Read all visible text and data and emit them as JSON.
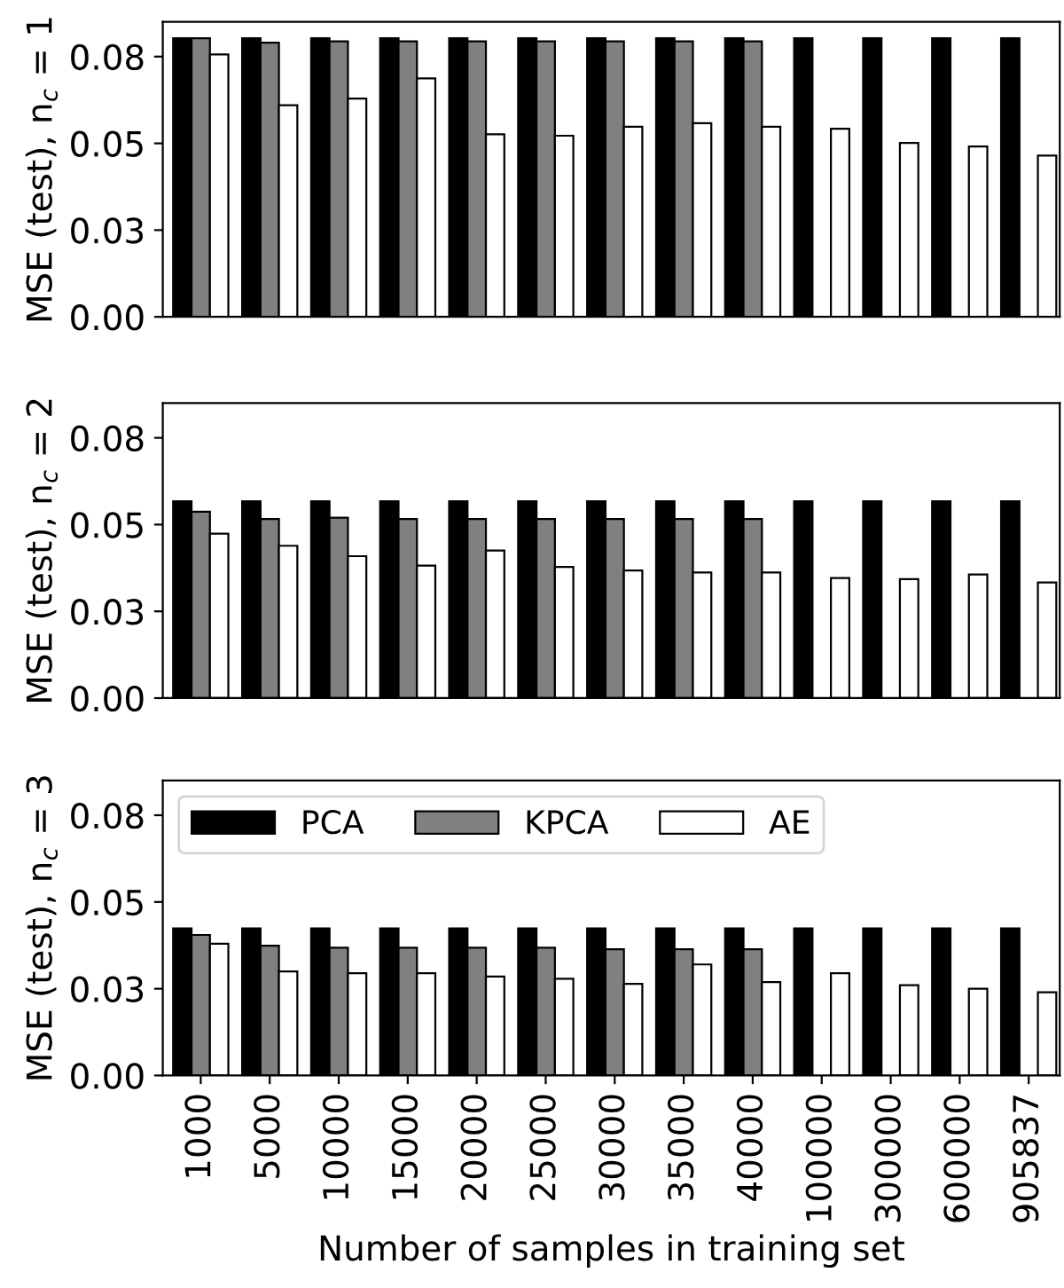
{
  "chart_data": [
    {
      "type": "bar",
      "ylabel": "MSE (test), n$_{c}$ = 1",
      "categories": [
        "1000",
        "5000",
        "10000",
        "15000",
        "20000",
        "25000",
        "30000",
        "35000",
        "40000",
        "100000",
        "300000",
        "600000",
        "905837"
      ],
      "ylim": [
        0,
        0.085
      ],
      "yticks": [
        {
          "value": 0,
          "label": "0.00"
        },
        {
          "value": 0.025,
          "label": "0.03"
        },
        {
          "value": 0.05,
          "label": "0.05"
        },
        {
          "value": 0.075,
          "label": "0.08"
        }
      ],
      "tick_labels": "y",
      "grid": false,
      "legend": false,
      "series": [
        {
          "color": "#000000",
          "values": [
            0.0803,
            0.0803,
            0.0803,
            0.0803,
            0.0803,
            0.0803,
            0.0803,
            0.0803,
            0.0803,
            0.0803,
            0.0803,
            0.0803,
            0.0803
          ]
        },
        {
          "color": "#808080",
          "values": [
            0.0803,
            0.079,
            0.0794,
            0.0794,
            0.0794,
            0.0794,
            0.0794,
            0.0794,
            0.0794,
            null,
            null,
            null,
            null
          ]
        },
        {
          "color": "#ffffff",
          "values": [
            0.0756,
            0.061,
            0.0629,
            0.0687,
            0.0526,
            0.0522,
            0.0548,
            0.0558,
            0.0548,
            0.0542,
            0.0501,
            0.0491,
            0.0465
          ]
        }
      ]
    },
    {
      "type": "bar",
      "ylabel": "MSE (test), n$_{c}$ = 2",
      "categories": [
        "1000",
        "5000",
        "10000",
        "15000",
        "20000",
        "25000",
        "30000",
        "35000",
        "40000",
        "100000",
        "300000",
        "600000",
        "905837"
      ],
      "ylim": [
        0,
        0.085
      ],
      "yticks": [
        {
          "value": 0,
          "label": "0.00"
        },
        {
          "value": 0.025,
          "label": "0.03"
        },
        {
          "value": 0.05,
          "label": "0.05"
        },
        {
          "value": 0.075,
          "label": "0.08"
        }
      ],
      "tick_labels": "y",
      "grid": false,
      "legend": false,
      "series": [
        {
          "color": "#000000",
          "values": [
            0.0567,
            0.0567,
            0.0567,
            0.0567,
            0.0567,
            0.0567,
            0.0567,
            0.0567,
            0.0567,
            0.0567,
            0.0567,
            0.0567,
            0.0567
          ]
        },
        {
          "color": "#808080",
          "values": [
            0.0537,
            0.0516,
            0.052,
            0.0516,
            0.0516,
            0.0516,
            0.0516,
            0.0516,
            0.0516,
            null,
            null,
            null,
            null
          ]
        },
        {
          "color": "#ffffff",
          "values": [
            0.0474,
            0.0439,
            0.0409,
            0.0382,
            0.0425,
            0.0378,
            0.0368,
            0.0362,
            0.0362,
            0.0346,
            0.0343,
            0.0356,
            0.0333
          ]
        }
      ]
    },
    {
      "type": "bar",
      "ylabel": "MSE (test), n$_{c}$ = 3",
      "xlabel": "Number of samples in training set",
      "categories": [
        "1000",
        "5000",
        "10000",
        "15000",
        "20000",
        "25000",
        "30000",
        "35000",
        "40000",
        "100000",
        "300000",
        "600000",
        "905837"
      ],
      "ylim": [
        0,
        0.085
      ],
      "yticks": [
        {
          "value": 0,
          "label": "0.00"
        },
        {
          "value": 0.025,
          "label": "0.03"
        },
        {
          "value": 0.05,
          "label": "0.05"
        },
        {
          "value": 0.075,
          "label": "0.08"
        }
      ],
      "grid": false,
      "legend": "top left",
      "series": [
        {
          "name": "PCA",
          "color": "#000000",
          "values": [
            0.0424,
            0.0424,
            0.0424,
            0.0424,
            0.0424,
            0.0424,
            0.0424,
            0.0424,
            0.0424,
            0.0424,
            0.0424,
            0.0424,
            0.0424
          ]
        },
        {
          "name": "KPCA",
          "color": "#808080",
          "values": [
            0.0405,
            0.0374,
            0.0368,
            0.0368,
            0.0368,
            0.0368,
            0.0364,
            0.0364,
            0.0364,
            null,
            null,
            null,
            null
          ]
        },
        {
          "name": "AE",
          "color": "#ffffff",
          "values": [
            0.038,
            0.03,
            0.0295,
            0.0295,
            0.0285,
            0.0279,
            0.0264,
            0.032,
            0.0269,
            0.0295,
            0.026,
            0.025,
            0.024
          ]
        }
      ]
    }
  ]
}
